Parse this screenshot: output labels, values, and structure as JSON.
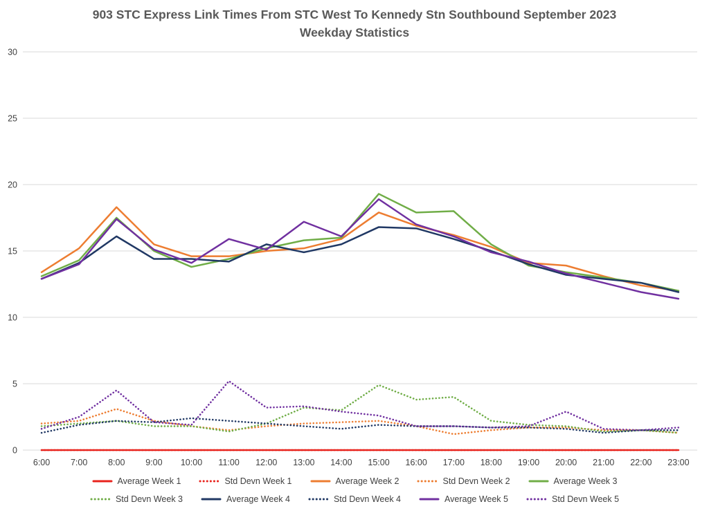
{
  "chart_data": {
    "type": "line",
    "title": "903 STC Express Link Times From STC West To Kennedy Stn Southbound September 2023",
    "subtitle": "Weekday Statistics",
    "categories": [
      "6:00",
      "7:00",
      "8:00",
      "9:00",
      "10:00",
      "11:00",
      "12:00",
      "13:00",
      "14:00",
      "15:00",
      "16:00",
      "17:00",
      "18:00",
      "19:00",
      "20:00",
      "21:00",
      "22:00",
      "23:00"
    ],
    "ylim": [
      0,
      30
    ],
    "y_ticks": [
      0,
      5,
      10,
      15,
      20,
      25,
      30
    ],
    "grid": true,
    "gridline_color": "#d9d9d9",
    "legend_position": "bottom",
    "colors": {
      "week1": "#e8231c",
      "week2": "#ed7d31",
      "week3": "#70ad47",
      "week4": "#203864",
      "week5": "#7030a0"
    },
    "series": [
      {
        "name": "Average Week 1",
        "color_key": "week1",
        "style": "solid",
        "values": [
          0,
          0,
          0,
          0,
          0,
          0,
          0,
          0,
          0,
          0,
          0,
          0,
          0,
          0,
          0,
          0,
          0,
          0
        ]
      },
      {
        "name": "Std Devn Week 1",
        "color_key": "week1",
        "style": "dotted",
        "values": [
          0,
          0,
          0,
          0,
          0,
          0,
          0,
          0,
          0,
          0,
          0,
          0,
          0,
          0,
          0,
          0,
          0,
          0
        ]
      },
      {
        "name": "Average Week 2",
        "color_key": "week2",
        "style": "solid",
        "values": [
          13.4,
          15.2,
          18.3,
          15.5,
          14.6,
          14.6,
          15.0,
          15.2,
          15.9,
          17.9,
          16.9,
          16.2,
          15.3,
          14.1,
          13.9,
          13.1,
          12.4,
          12.0
        ]
      },
      {
        "name": "Std Devn Week 2",
        "color_key": "week2",
        "style": "dotted",
        "values": [
          2.0,
          2.2,
          3.1,
          2.2,
          1.8,
          1.5,
          1.8,
          2.0,
          2.1,
          2.2,
          1.8,
          1.2,
          1.5,
          1.7,
          1.7,
          1.5,
          1.5,
          1.3
        ]
      },
      {
        "name": "Average Week 3",
        "color_key": "week3",
        "style": "solid",
        "values": [
          13.1,
          14.3,
          17.5,
          15.0,
          13.8,
          14.4,
          15.2,
          15.8,
          16.0,
          19.3,
          17.9,
          18.0,
          15.5,
          13.9,
          13.4,
          13.0,
          12.6,
          12.0
        ]
      },
      {
        "name": "Std Devn Week 3",
        "color_key": "week3",
        "style": "dotted",
        "values": [
          1.8,
          2.0,
          2.2,
          1.8,
          1.8,
          1.4,
          2.0,
          3.2,
          3.0,
          4.9,
          3.8,
          4.0,
          2.2,
          1.9,
          1.8,
          1.4,
          1.5,
          1.3
        ]
      },
      {
        "name": "Average Week 4",
        "color_key": "week4",
        "style": "solid",
        "values": [
          12.9,
          14.1,
          16.1,
          14.4,
          14.4,
          14.2,
          15.5,
          14.9,
          15.5,
          16.8,
          16.7,
          15.9,
          15.0,
          14.0,
          13.2,
          12.9,
          12.6,
          11.9
        ]
      },
      {
        "name": "Std Devn Week 4",
        "color_key": "week4",
        "style": "dotted",
        "values": [
          1.3,
          1.9,
          2.2,
          2.1,
          2.4,
          2.2,
          2.0,
          1.8,
          1.6,
          1.9,
          1.8,
          1.8,
          1.7,
          1.7,
          1.6,
          1.3,
          1.5,
          1.5
        ]
      },
      {
        "name": "Average Week 5",
        "color_key": "week5",
        "style": "solid",
        "values": [
          12.9,
          14.0,
          17.4,
          15.1,
          14.1,
          15.9,
          15.1,
          17.2,
          16.1,
          18.9,
          17.0,
          16.1,
          14.9,
          14.2,
          13.3,
          12.6,
          11.9,
          11.4
        ]
      },
      {
        "name": "Std Devn Week 5",
        "color_key": "week5",
        "style": "dotted",
        "values": [
          1.6,
          2.5,
          4.5,
          2.1,
          1.9,
          5.2,
          3.2,
          3.3,
          2.9,
          2.6,
          1.8,
          1.8,
          1.7,
          1.8,
          2.9,
          1.6,
          1.5,
          1.7
        ]
      }
    ],
    "legend_rows": [
      [
        0,
        1,
        2,
        3,
        4
      ],
      [
        5,
        6,
        7,
        8,
        9
      ]
    ]
  }
}
